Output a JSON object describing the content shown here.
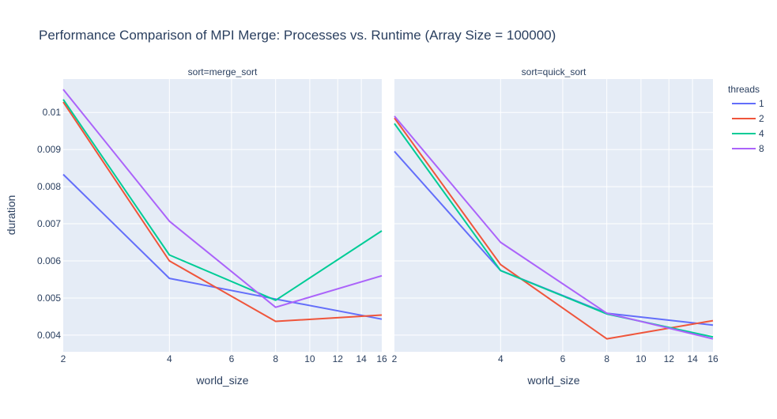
{
  "chart_data": {
    "type": "line",
    "title": "Performance Comparison of MPI Merge: Processes vs. Runtime (Array Size = 100000)",
    "xlabel": "world_size",
    "ylabel": "duration",
    "x_scale": "log",
    "xlim": [
      2,
      16
    ],
    "ylim": [
      0.00355,
      0.0109
    ],
    "x_ticks": [
      2,
      4,
      6,
      8,
      10,
      12,
      14,
      16
    ],
    "x_tick_labels": [
      "2",
      "4",
      "6",
      "8",
      "10",
      "12",
      "14",
      "16"
    ],
    "y_ticks": [
      0.004,
      0.005,
      0.006,
      0.007,
      0.008,
      0.009,
      0.01
    ],
    "y_tick_labels": [
      "0.004",
      "0.005",
      "0.006",
      "0.007",
      "0.008",
      "0.009",
      "0.01"
    ],
    "grid": true,
    "legend": {
      "title": "threads",
      "placement": "right"
    },
    "x": [
      2,
      4,
      8,
      16
    ],
    "facets": [
      {
        "label": "sort=merge_sort",
        "series": [
          {
            "name": "1",
            "color": "#636efa",
            "values": [
              0.00833,
              0.00553,
              0.00497,
              0.00443
            ]
          },
          {
            "name": "2",
            "color": "#ef553b",
            "values": [
              0.01028,
              0.006,
              0.00437,
              0.00454
            ]
          },
          {
            "name": "4",
            "color": "#00cc96",
            "values": [
              0.01035,
              0.00616,
              0.00494,
              0.00681
            ]
          },
          {
            "name": "8",
            "color": "#ab63fa",
            "values": [
              0.01062,
              0.00707,
              0.00475,
              0.0056
            ]
          }
        ]
      },
      {
        "label": "sort=quick_sort",
        "series": [
          {
            "name": "1",
            "color": "#636efa",
            "values": [
              0.00895,
              0.00574,
              0.00459,
              0.00427
            ]
          },
          {
            "name": "2",
            "color": "#ef553b",
            "values": [
              0.00985,
              0.0059,
              0.0039,
              0.00439
            ]
          },
          {
            "name": "4",
            "color": "#00cc96",
            "values": [
              0.0097,
              0.00574,
              0.00457,
              0.00395
            ]
          },
          {
            "name": "8",
            "color": "#ab63fa",
            "values": [
              0.0099,
              0.0065,
              0.00459,
              0.0039
            ]
          }
        ]
      }
    ]
  }
}
